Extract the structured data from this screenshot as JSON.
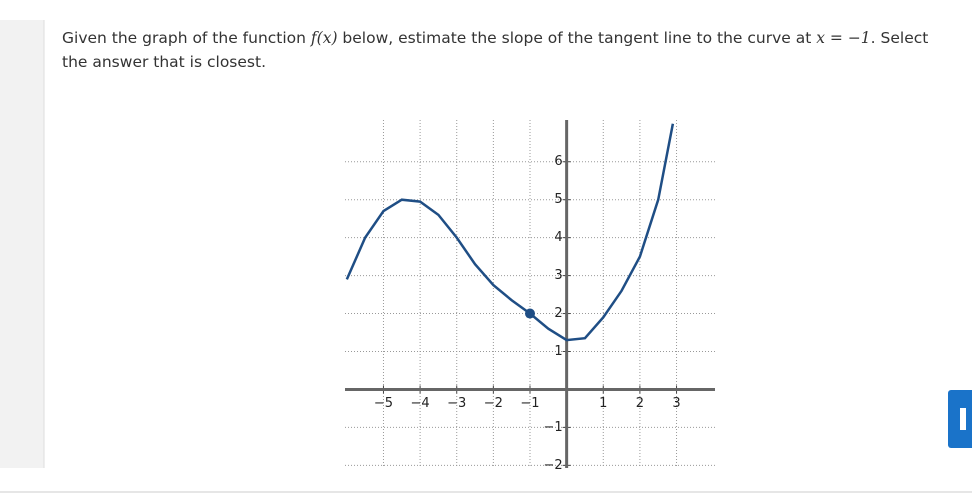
{
  "question": [
    "Given the graph of the function ",
    "f(x)",
    " below, estimate the slope of the tangent line to the curve at ",
    "x = −1",
    ". Select the answer that is closest."
  ],
  "chart_data": {
    "type": "line",
    "x": [
      -6,
      -5.5,
      -5,
      -4.5,
      -4,
      -3.5,
      -3,
      -2.5,
      -2,
      -1.5,
      -1,
      -0.5,
      0,
      0.5,
      1,
      1.5,
      2,
      2.5,
      2.9
    ],
    "values": [
      2.9,
      4.0,
      4.7,
      5.0,
      4.95,
      4.6,
      4.0,
      3.3,
      2.75,
      2.35,
      2.0,
      1.6,
      1.3,
      1.35,
      1.9,
      2.6,
      3.5,
      5.0,
      7.0
    ],
    "color": "#1f4e85",
    "point": {
      "x": -1,
      "y": 2
    },
    "xlim": [
      -6.05,
      4.05
    ],
    "ylim": [
      -2.07,
      7.1
    ],
    "xticks": [
      {
        "value": -5,
        "label": "−5"
      },
      {
        "value": -4,
        "label": "−4"
      },
      {
        "value": -3,
        "label": "−3"
      },
      {
        "value": -2,
        "label": "−2"
      },
      {
        "value": -1,
        "label": "−1"
      },
      1,
      2,
      3
    ],
    "yticks": [
      {
        "value": -2,
        "label": "−2"
      },
      {
        "value": -1,
        "label": "−1"
      },
      1,
      2,
      3,
      4,
      5,
      6
    ],
    "grid": true
  }
}
